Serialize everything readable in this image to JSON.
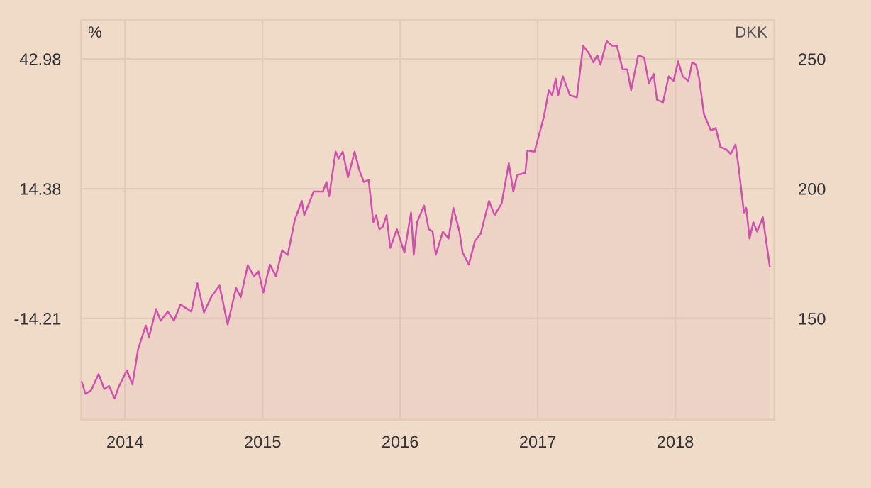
{
  "chart_data": {
    "type": "area",
    "ylabel": "%",
    "y2label": "DKK",
    "x": [
      2013.685,
      2013.713,
      2013.754,
      2013.808,
      2013.849,
      2013.884,
      2013.925,
      2013.952,
      2014.013,
      2014.054,
      2014.095,
      2014.151,
      2014.174,
      2014.226,
      2014.259,
      2014.311,
      2014.356,
      2014.403,
      2014.482,
      2014.526,
      2014.574,
      2014.629,
      2014.687,
      2014.746,
      2014.807,
      2014.841,
      2014.892,
      2014.936,
      2014.971,
      2015.005,
      2015.053,
      2015.097,
      2015.142,
      2015.183,
      2015.234,
      2015.285,
      2015.303,
      2015.371,
      2015.439,
      2015.464,
      2015.484,
      2015.531,
      2015.552,
      2015.583,
      2015.621,
      2015.669,
      2015.703,
      2015.736,
      2015.771,
      2015.805,
      2015.826,
      2015.849,
      2015.874,
      2015.901,
      2015.928,
      2015.976,
      2016.031,
      2016.079,
      2016.099,
      2016.123,
      2016.174,
      2016.208,
      2016.236,
      2016.259,
      2016.311,
      2016.352,
      2016.387,
      2016.431,
      2016.454,
      2016.499,
      2016.544,
      2016.585,
      2016.646,
      2016.687,
      2016.738,
      2016.79,
      2016.823,
      2016.851,
      2016.91,
      2016.926,
      2016.977,
      2017.046,
      2017.08,
      2017.105,
      2017.131,
      2017.149,
      2017.183,
      2017.234,
      2017.285,
      2017.33,
      2017.371,
      2017.405,
      2017.433,
      2017.456,
      2017.501,
      2017.542,
      2017.576,
      2017.617,
      2017.651,
      2017.679,
      2017.73,
      2017.774,
      2017.808,
      2017.843,
      2017.867,
      2017.911,
      2017.952,
      2017.987,
      2018.021,
      2018.054,
      2018.095,
      2018.123,
      2018.151,
      2018.174,
      2018.208,
      2018.259,
      2018.294,
      2018.328,
      2018.369,
      2018.403,
      2018.438,
      2018.459,
      2018.499,
      2018.516,
      2018.54,
      2018.567,
      2018.595,
      2018.636,
      2018.687
    ],
    "series": [
      {
        "axis": "y2",
        "color": "#d150ad",
        "values": [
          125.6,
          121.0,
          122.3,
          128.6,
          122.8,
          124.0,
          119.2,
          123.4,
          130.0,
          124.6,
          138.2,
          147.3,
          142.8,
          153.6,
          149.1,
          152.7,
          149.1,
          155.4,
          152.7,
          163.6,
          152.3,
          158.5,
          162.7,
          147.7,
          161.8,
          158.2,
          170.5,
          166.3,
          168.1,
          160.0,
          170.8,
          166.3,
          176.3,
          174.5,
          188.0,
          195.3,
          189.8,
          198.9,
          198.9,
          202.6,
          197.1,
          214.3,
          211.6,
          214.3,
          204.3,
          214.3,
          207.1,
          202.6,
          203.4,
          187.1,
          189.8,
          184.4,
          185.3,
          189.8,
          177.2,
          184.4,
          175.4,
          190.8,
          174.5,
          187.1,
          193.5,
          184.4,
          183.5,
          174.5,
          183.5,
          180.8,
          192.6,
          183.5,
          175.4,
          170.8,
          179.9,
          182.6,
          195.3,
          189.8,
          194.4,
          209.8,
          198.9,
          205.3,
          206.1,
          214.7,
          214.3,
          227.9,
          237.9,
          236.0,
          242.4,
          236.0,
          243.3,
          236.0,
          235.2,
          255.1,
          252.3,
          248.7,
          251.4,
          247.8,
          256.9,
          255.1,
          255.1,
          246.0,
          246.0,
          237.9,
          251.4,
          250.5,
          240.6,
          244.2,
          234.2,
          233.3,
          243.3,
          241.5,
          249.1,
          243.3,
          241.5,
          248.7,
          247.8,
          242.4,
          228.8,
          222.4,
          223.4,
          216.1,
          215.2,
          213.4,
          217.0,
          208.9,
          190.8,
          192.6,
          180.8,
          187.1,
          183.5,
          189.0,
          170.0
        ]
      }
    ],
    "xlim": [
      2013.68,
      2018.72
    ],
    "xticks": [
      2014,
      2015,
      2016,
      2017,
      2018
    ],
    "ylim": [
      -36.52,
      51.56
    ],
    "yticks": [
      -14.21,
      14.38,
      42.98
    ],
    "y2lim": [
      111,
      265
    ],
    "y2ticks": [
      150,
      200,
      250
    ],
    "grid": true
  }
}
